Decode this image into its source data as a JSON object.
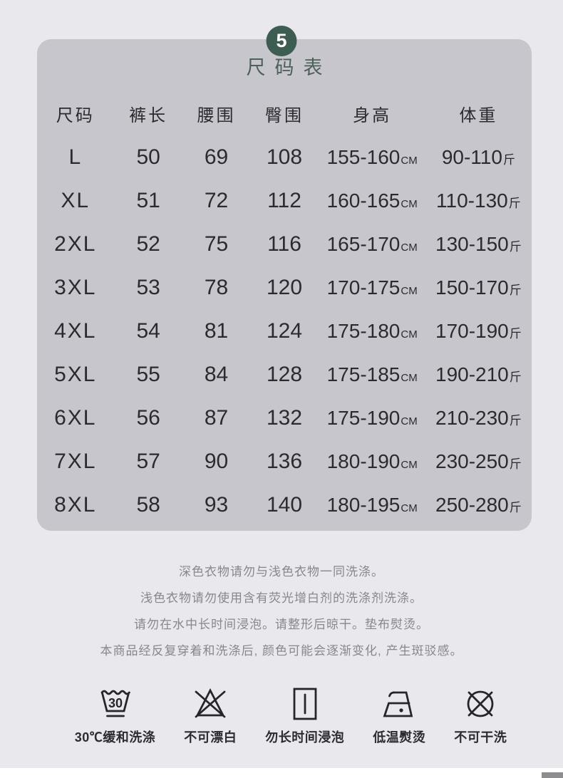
{
  "page": {
    "badge_number": "5",
    "title": "尺码表"
  },
  "size_chart": {
    "columns": [
      "尺码",
      "裤长",
      "腰围",
      "臀围",
      "身高",
      "体重"
    ],
    "height_unit": "CM",
    "weight_unit": "斤",
    "rows": [
      {
        "size": "L",
        "pants_length": "50",
        "waist": "69",
        "hip": "108",
        "height": "155-160",
        "weight": "90-110"
      },
      {
        "size": "XL",
        "pants_length": "51",
        "waist": "72",
        "hip": "112",
        "height": "160-165",
        "weight": "110-130"
      },
      {
        "size": "2XL",
        "pants_length": "52",
        "waist": "75",
        "hip": "116",
        "height": "165-170",
        "weight": "130-150"
      },
      {
        "size": "3XL",
        "pants_length": "53",
        "waist": "78",
        "hip": "120",
        "height": "170-175",
        "weight": "150-170"
      },
      {
        "size": "4XL",
        "pants_length": "54",
        "waist": "81",
        "hip": "124",
        "height": "175-180",
        "weight": "170-190"
      },
      {
        "size": "5XL",
        "pants_length": "55",
        "waist": "84",
        "hip": "128",
        "height": "175-185",
        "weight": "190-210"
      },
      {
        "size": "6XL",
        "pants_length": "56",
        "waist": "87",
        "hip": "132",
        "height": "175-190",
        "weight": "210-230"
      },
      {
        "size": "7XL",
        "pants_length": "57",
        "waist": "90",
        "hip": "136",
        "height": "180-190",
        "weight": "230-250"
      },
      {
        "size": "8XL",
        "pants_length": "58",
        "waist": "93",
        "hip": "140",
        "height": "180-195",
        "weight": "250-280"
      }
    ]
  },
  "care_notes": [
    "深色衣物请勿与浅色衣物一同洗涤。",
    "浅色衣物请勿使用含有荧光增白剂的洗涤剂洗涤。",
    "请勿在水中长时间浸泡。请整形后晾干。垫布熨烫。",
    "本商品经反复穿着和洗涤后, 颜色可能会逐渐变化, 产生斑驳感。"
  ],
  "care_icons": [
    {
      "icon": "wash-30-icon",
      "label": "30℃缓和洗涤",
      "symbol_text": "30"
    },
    {
      "icon": "no-bleach-icon",
      "label": "不可漂白"
    },
    {
      "icon": "no-soak-icon",
      "label": "勿长时间浸泡"
    },
    {
      "icon": "low-iron-icon",
      "label": "低温熨烫"
    },
    {
      "icon": "no-dry-clean-icon",
      "label": "不可干洗"
    }
  ],
  "colors": {
    "page_bg": "#e9e8ed",
    "panel_bg": "#c7c6cd",
    "badge_bg": "#3d5d52",
    "badge_text": "#ffffff",
    "title_text": "#4e605a",
    "table_text": "#2b2b2f",
    "note_text": "#88878c",
    "icon_label_text": "#2c2c30",
    "icon_stroke": "#26262a",
    "bottom_bar": "#8d8d90"
  }
}
